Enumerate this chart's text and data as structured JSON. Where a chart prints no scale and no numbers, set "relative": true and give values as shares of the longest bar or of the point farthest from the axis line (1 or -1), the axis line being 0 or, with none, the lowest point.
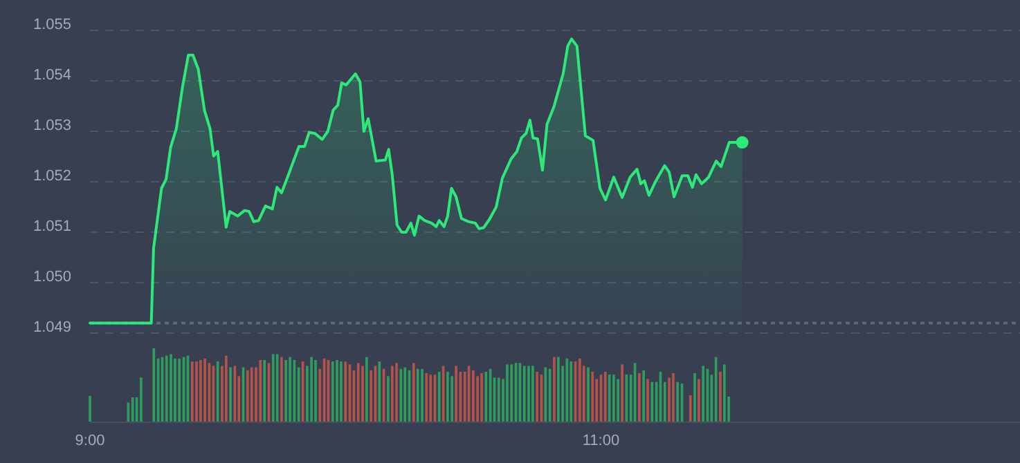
{
  "chart_data": [
    {
      "type": "area",
      "color": "#2ee87a",
      "grid": "y",
      "tick_labels": "y",
      "marker": "none",
      "x": [
        9,
        9.24,
        9.249,
        9.28,
        9.298,
        9.316,
        9.338,
        9.362,
        9.385,
        9.403,
        9.424,
        9.448,
        9.47,
        9.484,
        9.5,
        9.533,
        9.547,
        9.578,
        9.605,
        9.623,
        9.641,
        9.66,
        9.687,
        9.714,
        9.732,
        9.75,
        9.777,
        9.818,
        9.84,
        9.858,
        9.88,
        9.909,
        9.931,
        9.952,
        9.97,
        9.985,
        10.003,
        10.039,
        10.057,
        10.072,
        10.089,
        10.12,
        10.156,
        10.169,
        10.183,
        10.202,
        10.22,
        10.237,
        10.256,
        10.27,
        10.288,
        10.31,
        10.337,
        10.355,
        10.367,
        10.386,
        10.4,
        10.415,
        10.433,
        10.454,
        10.481,
        10.508,
        10.523,
        10.541,
        10.563,
        10.59,
        10.614,
        10.649,
        10.671,
        10.689,
        10.707,
        10.722,
        10.734,
        10.752,
        10.771,
        10.789,
        10.816,
        10.852,
        10.87,
        10.885,
        10.906,
        10.939,
        10.969,
        10.996,
        11.018,
        11.05,
        11.083,
        11.114,
        11.141,
        11.156,
        11.17,
        11.188,
        11.213,
        11.249,
        11.267,
        11.286,
        11.318,
        11.34,
        11.358,
        11.372,
        11.394,
        11.421,
        11.451,
        11.47,
        11.502,
        11.553
      ],
      "values": [
        1.0492,
        1.0492,
        1.05068,
        1.05187,
        1.05205,
        1.05269,
        1.05305,
        1.05387,
        1.05451,
        1.05451,
        1.05423,
        1.05342,
        1.05305,
        1.05251,
        1.0526,
        1.0511,
        1.05141,
        1.05132,
        1.05143,
        1.05141,
        1.05121,
        1.05123,
        1.05152,
        1.05146,
        1.05189,
        1.05178,
        1.05214,
        1.0527,
        1.0527,
        1.05298,
        1.05296,
        1.05284,
        1.053,
        1.05342,
        1.05352,
        1.05396,
        1.05392,
        1.05414,
        1.05398,
        1.053,
        1.05325,
        1.05241,
        1.05243,
        1.05264,
        1.05214,
        1.05114,
        1.051,
        1.051,
        1.05118,
        1.05094,
        1.05132,
        1.05123,
        1.05118,
        1.05111,
        1.05123,
        1.05111,
        1.05132,
        1.05187,
        1.0517,
        1.05127,
        1.05121,
        1.05118,
        1.05107,
        1.05109,
        1.05125,
        1.0515,
        1.05207,
        1.05246,
        1.0526,
        1.05287,
        1.05296,
        1.05322,
        1.05287,
        1.05285,
        1.05223,
        1.05314,
        1.05349,
        1.05414,
        1.05469,
        1.05483,
        1.05469,
        1.05291,
        1.05282,
        1.05187,
        1.05164,
        1.05209,
        1.05169,
        1.05209,
        1.05225,
        1.05196,
        1.05202,
        1.05173,
        1.052,
        1.05232,
        1.05219,
        1.0517,
        1.05212,
        1.05212,
        1.05189,
        1.05214,
        1.05196,
        1.05209,
        1.05241,
        1.0523,
        1.05278,
        1.05278
      ],
      "xlim": [
        9,
        12.64
      ],
      "ylim": [
        1.049,
        1.055
      ],
      "yticks": [
        1.049,
        {
          "value": 1.05,
          "label": "1.050"
        },
        1.051,
        1.052,
        1.053,
        1.054,
        1.055
      ],
      "ref_lines": [
        {
          "axis": "y",
          "value": 1.0492,
          "color": "#5d6677",
          "line_style": "dotted"
        }
      ]
    },
    {
      "type": "bar",
      "relative": true,
      "tick_labels": "x",
      "xlim": [
        9,
        12.64
      ],
      "xticks": [
        {
          "value": 9,
          "label": "9:00"
        },
        {
          "value": 11,
          "label": "11:00"
        }
      ],
      "x": [
        9,
        9.15,
        9.167,
        9.183,
        9.2,
        9.25,
        9.267,
        9.283,
        9.3,
        9.317,
        9.333,
        9.35,
        9.367,
        9.383,
        9.4,
        9.417,
        9.433,
        9.45,
        9.467,
        9.483,
        9.5,
        9.517,
        9.533,
        9.55,
        9.567,
        9.583,
        9.6,
        9.617,
        9.633,
        9.65,
        9.667,
        9.683,
        9.7,
        9.717,
        9.733,
        9.75,
        9.767,
        9.783,
        9.8,
        9.817,
        9.833,
        9.85,
        9.867,
        9.883,
        9.9,
        9.917,
        9.933,
        9.95,
        9.967,
        9.983,
        10,
        10.017,
        10.033,
        10.05,
        10.067,
        10.083,
        10.1,
        10.117,
        10.133,
        10.15,
        10.167,
        10.183,
        10.2,
        10.217,
        10.233,
        10.25,
        10.267,
        10.283,
        10.3,
        10.317,
        10.333,
        10.35,
        10.367,
        10.383,
        10.4,
        10.417,
        10.433,
        10.45,
        10.467,
        10.483,
        10.5,
        10.517,
        10.533,
        10.55,
        10.567,
        10.583,
        10.6,
        10.617,
        10.633,
        10.65,
        10.667,
        10.683,
        10.7,
        10.717,
        10.733,
        10.75,
        10.767,
        10.783,
        10.8,
        10.817,
        10.833,
        10.85,
        10.867,
        10.883,
        10.9,
        10.917,
        10.933,
        10.95,
        10.967,
        10.983,
        11,
        11.017,
        11.033,
        11.05,
        11.067,
        11.083,
        11.1,
        11.117,
        11.133,
        11.15,
        11.167,
        11.183,
        11.2,
        11.217,
        11.233,
        11.25,
        11.267,
        11.283,
        11.3,
        11.317,
        11.35,
        11.367,
        11.383,
        11.4,
        11.417,
        11.433,
        11.45,
        11.467,
        11.483,
        11.5
      ],
      "values": [
        0.35,
        0.26,
        0.33,
        0.33,
        0.6,
        1,
        0.86,
        0.88,
        0.9,
        0.92,
        0.86,
        0.86,
        0.88,
        0.9,
        0.82,
        0.82,
        0.84,
        0.86,
        0.8,
        0.76,
        0.82,
        0.76,
        0.9,
        0.74,
        0.76,
        0.62,
        0.74,
        0.7,
        0.74,
        0.74,
        0.84,
        0.84,
        0.8,
        0.92,
        0.92,
        0.88,
        0.84,
        0.88,
        0.84,
        0.74,
        0.82,
        0.76,
        0.88,
        0.84,
        0.72,
        0.86,
        0.84,
        0.82,
        0.84,
        0.82,
        0.82,
        0.78,
        0.7,
        0.8,
        0.76,
        0.88,
        0.7,
        0.76,
        0.82,
        0.72,
        0.62,
        0.76,
        0.8,
        0.72,
        0.74,
        0.7,
        0.8,
        0.72,
        0.72,
        0.66,
        0.64,
        0.64,
        0.68,
        0.76,
        0.68,
        0.62,
        0.76,
        0.68,
        0.68,
        0.76,
        0.7,
        0.62,
        0.66,
        0.68,
        0.72,
        0.6,
        0.6,
        0.58,
        0.78,
        0.78,
        0.8,
        0.8,
        0.76,
        0.76,
        0.76,
        0.68,
        0.64,
        0.74,
        0.72,
        0.88,
        0.88,
        0.76,
        0.86,
        0.82,
        0.82,
        0.86,
        0.76,
        0.74,
        0.68,
        0.58,
        0.64,
        0.68,
        0.64,
        0.64,
        0.58,
        0.78,
        0.64,
        0.64,
        0.8,
        0.66,
        0.7,
        0.58,
        0.54,
        0.54,
        0.68,
        0.54,
        0.6,
        0.66,
        0.54,
        0.52,
        0.36,
        0.66,
        0.58,
        0.76,
        0.72,
        0.64,
        0.88,
        0.68,
        0.78,
        0.34
      ],
      "colors": [
        "#2e9e5e",
        "#2e9e5e",
        "#2e9e5e",
        "#2e9e5e",
        "#2e9e5e",
        "#2e9e5e",
        "#2e9e5e",
        "#2e9e5e",
        "#2e9e5e",
        "#2e9e5e",
        "#2e9e5e",
        "#2e9e5e",
        "#2e9e5e",
        "#2e9e5e",
        "#b5524a",
        "#b5524a",
        "#b5524a",
        "#b5524a",
        "#b5524a",
        "#b5524a",
        "#2e9e5e",
        "#b5524a",
        "#b5524a",
        "#2e9e5e",
        "#b5524a",
        "#b5524a",
        "#2e9e5e",
        "#b5524a",
        "#b5524a",
        "#b5524a",
        "#b5524a",
        "#2e9e5e",
        "#b5524a",
        "#2e9e5e",
        "#2e9e5e",
        "#b5524a",
        "#2e9e5e",
        "#2e9e5e",
        "#2e9e5e",
        "#2e9e5e",
        "#b5524a",
        "#2e9e5e",
        "#2e9e5e",
        "#2e9e5e",
        "#b5524a",
        "#b5524a",
        "#b5524a",
        "#2e9e5e",
        "#2e9e5e",
        "#2e9e5e",
        "#b5524a",
        "#b5524a",
        "#b5524a",
        "#b5524a",
        "#b5524a",
        "#2e9e5e",
        "#b5524a",
        "#b5524a",
        "#2e9e5e",
        "#b5524a",
        "#2e9e5e",
        "#b5524a",
        "#b5524a",
        "#2e9e5e",
        "#2e9e5e",
        "#2e9e5e",
        "#b5524a",
        "#2e9e5e",
        "#2e9e5e",
        "#b5524a",
        "#b5524a",
        "#b5524a",
        "#2e9e5e",
        "#b5524a",
        "#2e9e5e",
        "#2e9e5e",
        "#b5524a",
        "#b5524a",
        "#b5524a",
        "#b5524a",
        "#b5524a",
        "#b5524a",
        "#b5524a",
        "#2e9e5e",
        "#2e9e5e",
        "#2e9e5e",
        "#2e9e5e",
        "#2e9e5e",
        "#2e9e5e",
        "#2e9e5e",
        "#2e9e5e",
        "#2e9e5e",
        "#2e9e5e",
        "#2e9e5e",
        "#2e9e5e",
        "#b5524a",
        "#b5524a",
        "#2e9e5e",
        "#2e9e5e",
        "#b5524a",
        "#2e9e5e",
        "#2e9e5e",
        "#2e9e5e",
        "#2e9e5e",
        "#b5524a",
        "#b5524a",
        "#b5524a",
        "#2e9e5e",
        "#b5524a",
        "#b5524a",
        "#b5524a",
        "#b5524a",
        "#2e9e5e",
        "#2e9e5e",
        "#2e9e5e",
        "#b5524a",
        "#2e9e5e",
        "#2e9e5e",
        "#2e9e5e",
        "#b5524a",
        "#2e9e5e",
        "#b5524a",
        "#2e9e5e",
        "#2e9e5e",
        "#2e9e5e",
        "#2e9e5e",
        "#b5524a",
        "#b5524a",
        "#2e9e5e",
        "#2e9e5e",
        "#b5524a",
        "#2e9e5e",
        "#b5524a",
        "#2e9e5e",
        "#2e9e5e",
        "#2e9e5e",
        "#2e9e5e",
        "#b5524a",
        "#2e9e5e",
        "#2e9e5e"
      ]
    }
  ]
}
